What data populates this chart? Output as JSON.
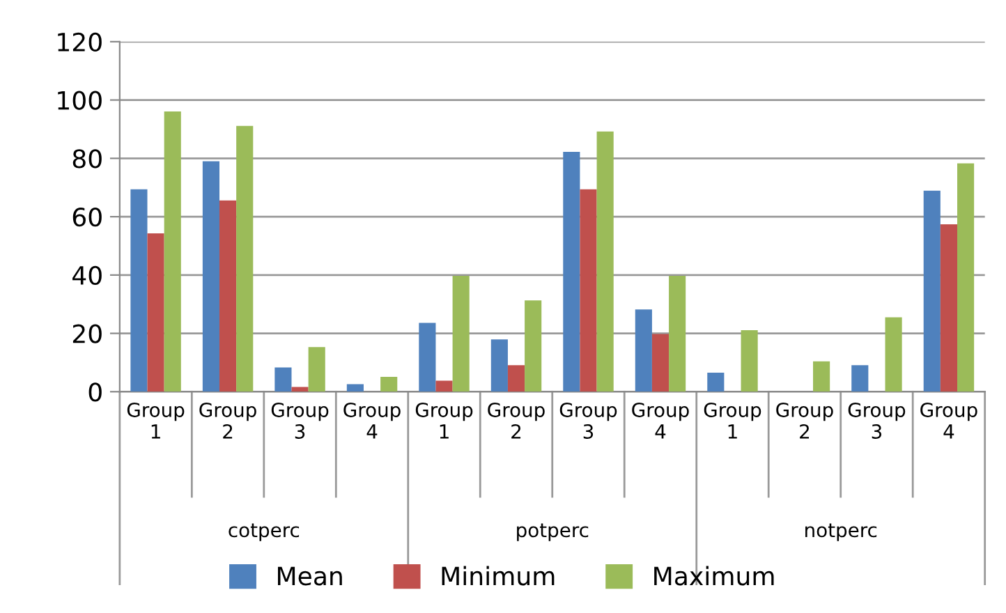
{
  "chart_data": {
    "type": "bar",
    "categories": [
      "Group 1",
      "Group 2",
      "Group 3",
      "Group 4",
      "Group 1",
      "Group 2",
      "Group 3",
      "Group 4",
      "Group 1",
      "Group 2",
      "Group 3",
      "Group 4"
    ],
    "annotations": [
      "cotperc",
      "potperc",
      "notperc"
    ],
    "series": [
      {
        "name": "Mean",
        "color": "#4f81bd",
        "values": [
          69.4,
          79,
          8.3,
          2.6,
          23.6,
          17.9,
          82.2,
          28.2,
          6.5,
          0,
          9.1,
          68.9
        ]
      },
      {
        "name": "Minimum",
        "color": "#c0504d",
        "values": [
          54.3,
          65.6,
          1.6,
          0,
          3.8,
          9.1,
          69.4,
          19.8,
          0,
          0,
          0,
          57.4
        ]
      },
      {
        "name": "Maximum",
        "color": "#9bbb59",
        "values": [
          96.1,
          91.1,
          15.3,
          5.1,
          39.7,
          31.3,
          89.2,
          39.7,
          21.1,
          10.4,
          25.5,
          78.3
        ]
      }
    ],
    "ylim": [
      0,
      120
    ],
    "yticks": [
      0,
      20,
      40,
      60,
      80,
      100,
      120
    ],
    "grid": "y",
    "legend": "bottom"
  }
}
